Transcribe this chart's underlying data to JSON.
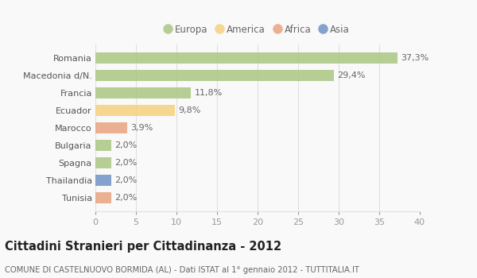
{
  "countries": [
    "Romania",
    "Macedonia d/N.",
    "Francia",
    "Ecuador",
    "Marocco",
    "Bulgaria",
    "Spagna",
    "Thailandia",
    "Tunisia"
  ],
  "values": [
    37.3,
    29.4,
    11.8,
    9.8,
    3.9,
    2.0,
    2.0,
    2.0,
    2.0
  ],
  "labels": [
    "37,3%",
    "29,4%",
    "11,8%",
    "9,8%",
    "3,9%",
    "2,0%",
    "2,0%",
    "2,0%",
    "2,0%"
  ],
  "colors": [
    "#a8c47e",
    "#a8c47e",
    "#a8c47e",
    "#f5d07a",
    "#e8a07a",
    "#a8c47e",
    "#a8c47e",
    "#6b8fc2",
    "#e8a07a"
  ],
  "legend": [
    {
      "label": "Europa",
      "color": "#a8c47e"
    },
    {
      "label": "America",
      "color": "#f5d07a"
    },
    {
      "label": "Africa",
      "color": "#e8a07a"
    },
    {
      "label": "Asia",
      "color": "#6b8fc2"
    }
  ],
  "xlim": [
    0,
    40
  ],
  "xticks": [
    0,
    5,
    10,
    15,
    20,
    25,
    30,
    35,
    40
  ],
  "title": "Cittadini Stranieri per Cittadinanza - 2012",
  "subtitle": "COMUNE DI CASTELNUOVO BORMIDA (AL) - Dati ISTAT al 1° gennaio 2012 - TUTTITALIA.IT",
  "background_color": "#f9f9f9",
  "grid_color": "#e0e0e0",
  "bar_height": 0.65,
  "label_fontsize": 8,
  "ytick_fontsize": 8,
  "xtick_fontsize": 8,
  "title_fontsize": 10.5,
  "subtitle_fontsize": 7.2,
  "bar_alpha": 0.82
}
